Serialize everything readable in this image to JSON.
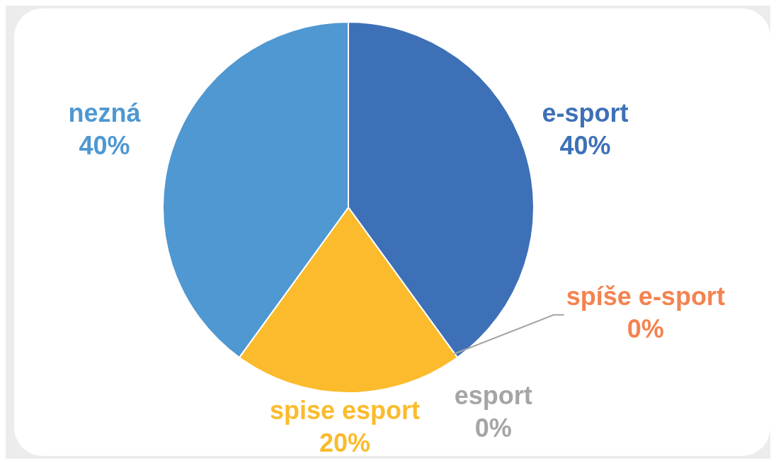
{
  "chart_data": {
    "type": "pie",
    "categories": [
      "e-sport",
      "spíše e-sport",
      "esport",
      "spise esport",
      "nezná"
    ],
    "values": [
      40,
      0,
      0,
      20,
      40
    ],
    "colors": [
      "#3d70b7",
      "#f4824f",
      "#a5a5a5",
      "#fcbb2c",
      "#4f98d2"
    ],
    "value_labels": [
      "40%",
      "0%",
      "0%",
      "20%",
      "40%"
    ]
  }
}
